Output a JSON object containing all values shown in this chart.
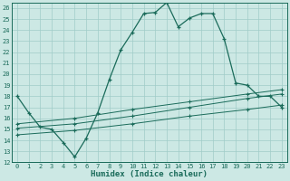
{
  "xlabel": "Humidex (Indice chaleur)",
  "bg_color": "#cce8e4",
  "grid_color": "#a0ccc8",
  "line_color": "#1a6b5a",
  "xlim": [
    -0.5,
    23.5
  ],
  "ylim": [
    12,
    26.5
  ],
  "yticks": [
    12,
    13,
    14,
    15,
    16,
    17,
    18,
    19,
    20,
    21,
    22,
    23,
    24,
    25,
    26
  ],
  "xticks": [
    0,
    1,
    2,
    3,
    4,
    5,
    6,
    7,
    8,
    9,
    10,
    11,
    12,
    13,
    14,
    15,
    16,
    17,
    18,
    19,
    20,
    21,
    22,
    23
  ],
  "main_x": [
    0,
    1,
    2,
    3,
    4,
    5,
    6,
    7,
    8,
    9,
    10,
    11,
    12,
    13,
    14,
    15,
    16,
    17,
    18,
    19,
    20,
    21,
    22,
    23
  ],
  "main_y": [
    18.0,
    16.5,
    15.2,
    15.0,
    13.8,
    12.5,
    14.2,
    16.5,
    19.5,
    22.2,
    23.8,
    25.5,
    25.6,
    26.5,
    24.3,
    25.1,
    25.5,
    25.5,
    23.2,
    19.2,
    19.0,
    18.0,
    18.0,
    17.0
  ],
  "upper_line_x": [
    0,
    5,
    10,
    15,
    20,
    23
  ],
  "upper_line_y": [
    15.5,
    16.0,
    16.8,
    17.5,
    18.2,
    18.6
  ],
  "mid_line_x": [
    0,
    5,
    10,
    15,
    20,
    23
  ],
  "mid_line_y": [
    15.1,
    15.5,
    16.2,
    17.0,
    17.8,
    18.2
  ],
  "lower_line_x": [
    0,
    5,
    10,
    15,
    20,
    23
  ],
  "lower_line_y": [
    14.5,
    14.9,
    15.5,
    16.2,
    16.8,
    17.2
  ],
  "tick_fontsize": 5.0,
  "xlabel_fontsize": 6.5
}
